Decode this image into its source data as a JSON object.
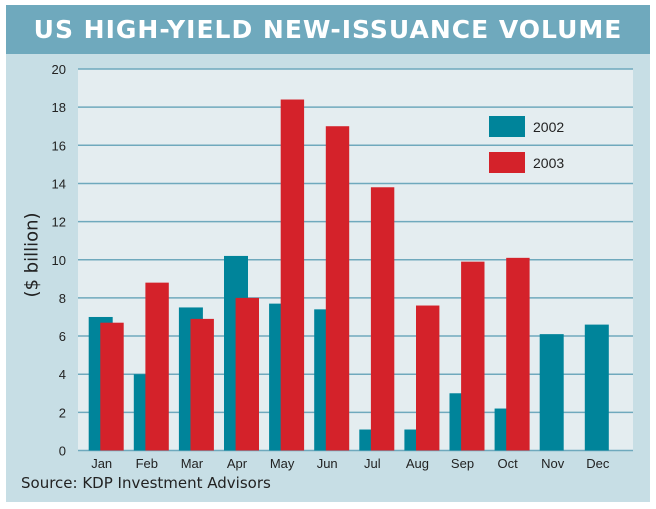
{
  "chart_data": {
    "type": "bar",
    "title": "US HIGH-YIELD NEW-ISSUANCE VOLUME",
    "xlabel": "",
    "ylabel": "($ billion)",
    "ylim": [
      0,
      20
    ],
    "yticks": [
      0,
      2,
      4,
      6,
      8,
      10,
      12,
      14,
      16,
      18,
      20
    ],
    "grid": true,
    "legend_position": "top-right",
    "categories": [
      "Jan",
      "Feb",
      "Mar",
      "Apr",
      "May",
      "Jun",
      "Jul",
      "Aug",
      "Sep",
      "Oct",
      "Nov",
      "Dec"
    ],
    "series": [
      {
        "name": "2002",
        "color": "#00849a",
        "values": [
          7.0,
          4.0,
          7.5,
          10.2,
          7.7,
          7.4,
          1.1,
          1.1,
          3.0,
          2.2,
          6.1,
          6.6
        ]
      },
      {
        "name": "2003",
        "color": "#d4222a",
        "values": [
          6.7,
          8.8,
          6.9,
          8.0,
          18.4,
          17.0,
          13.8,
          7.6,
          9.9,
          10.1,
          null,
          null
        ]
      }
    ],
    "source": "Source: KDP Investment Advisors"
  }
}
